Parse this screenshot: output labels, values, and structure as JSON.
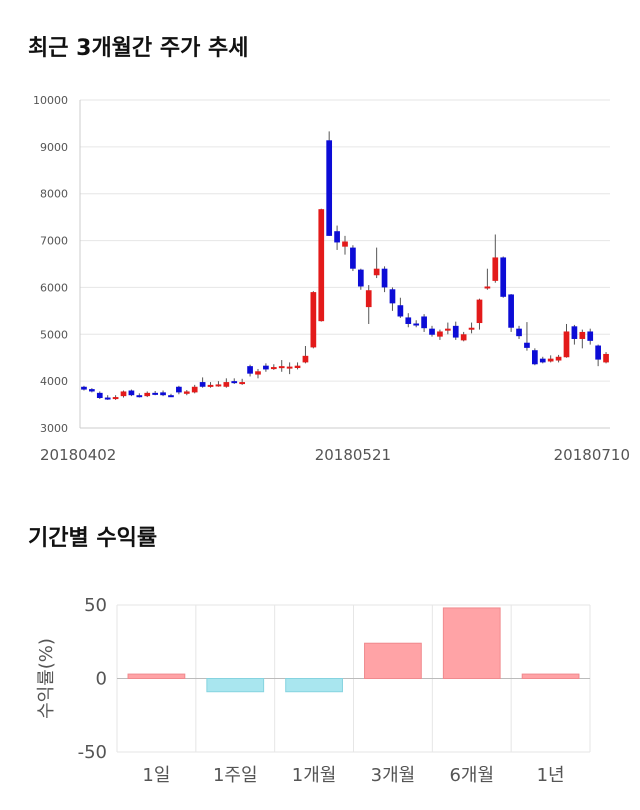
{
  "titles": {
    "price_chart": "최근 3개월간 주가 추세",
    "returns_chart": "기간별 수익률"
  },
  "colors": {
    "up": "#e31a1a",
    "down": "#0c0cd6",
    "wick": "#555555",
    "grid": "#e6e6e6",
    "positive_bar": "#ffa3a6",
    "negative_bar": "#a9e6ef"
  },
  "chart_data": [
    {
      "type": "candlestick",
      "title": "최근 3개월간 주가 추세",
      "ylim": [
        3000,
        10000
      ],
      "y_ticks": [
        "3000",
        "4000",
        "5000",
        "6000",
        "7000",
        "8000",
        "9000",
        "10000"
      ],
      "x_tick_labels": [
        {
          "label": "20180402",
          "index": 0
        },
        {
          "label": "20180521",
          "index": 34
        },
        {
          "label": "20180710",
          "index": 68
        }
      ],
      "grid": true,
      "candles": [
        [
          3880,
          3820,
          3900,
          3800
        ],
        [
          3830,
          3780,
          3850,
          3760
        ],
        [
          3750,
          3640,
          3780,
          3620
        ],
        [
          3650,
          3640,
          3700,
          3600
        ],
        [
          3640,
          3660,
          3700,
          3600
        ],
        [
          3680,
          3780,
          3800,
          3650
        ],
        [
          3800,
          3700,
          3820,
          3680
        ],
        [
          3700,
          3680,
          3740,
          3650
        ],
        [
          3680,
          3750,
          3780,
          3660
        ],
        [
          3750,
          3720,
          3790,
          3700
        ],
        [
          3760,
          3700,
          3800,
          3680
        ],
        [
          3700,
          3680,
          3730,
          3660
        ],
        [
          3880,
          3760,
          3900,
          3720
        ],
        [
          3730,
          3780,
          3810,
          3700
        ],
        [
          3760,
          3880,
          3920,
          3740
        ],
        [
          3980,
          3880,
          4080,
          3860
        ],
        [
          3900,
          3920,
          3980,
          3860
        ],
        [
          3920,
          3930,
          4000,
          3880
        ],
        [
          3880,
          3980,
          4060,
          3860
        ],
        [
          4000,
          3980,
          4060,
          3940
        ],
        [
          3960,
          3980,
          4050,
          3920
        ],
        [
          4320,
          4160,
          4350,
          4100
        ],
        [
          4140,
          4210,
          4260,
          4060
        ],
        [
          4330,
          4250,
          4380,
          4200
        ],
        [
          4280,
          4300,
          4360,
          4240
        ],
        [
          4300,
          4320,
          4450,
          4200
        ],
        [
          4310,
          4310,
          4400,
          4150
        ],
        [
          4280,
          4330,
          4400,
          4250
        ],
        [
          4400,
          4540,
          4750,
          4380
        ],
        [
          4720,
          5900,
          5920,
          4700
        ],
        [
          5280,
          7670,
          7680,
          5270
        ],
        [
          9140,
          7100,
          9330,
          7100
        ],
        [
          7200,
          6960,
          7320,
          6800
        ],
        [
          6870,
          6980,
          7100,
          6700
        ],
        [
          6850,
          6400,
          6900,
          6350
        ],
        [
          6380,
          6020,
          6400,
          5950
        ],
        [
          5580,
          5940,
          6050,
          5220
        ],
        [
          6260,
          6400,
          6850,
          6200
        ],
        [
          6400,
          6000,
          6450,
          5900
        ],
        [
          5960,
          5660,
          6000,
          5500
        ],
        [
          5620,
          5380,
          5780,
          5350
        ],
        [
          5360,
          5220,
          5450,
          5150
        ],
        [
          5230,
          5210,
          5300,
          5150
        ],
        [
          5380,
          5130,
          5430,
          5050
        ],
        [
          5120,
          4990,
          5180,
          4950
        ],
        [
          4950,
          5060,
          5100,
          4880
        ],
        [
          5100,
          5120,
          5250,
          5000
        ],
        [
          5180,
          4930,
          5270,
          4880
        ],
        [
          4870,
          5000,
          5050,
          4850
        ],
        [
          5100,
          5140,
          5250,
          5020
        ],
        [
          5240,
          5740,
          5760,
          5100
        ],
        [
          6010,
          6020,
          6400,
          5950
        ],
        [
          6140,
          6640,
          7130,
          6100
        ],
        [
          6640,
          5800,
          6660,
          5780
        ],
        [
          5850,
          5140,
          5860,
          5050
        ],
        [
          5120,
          4960,
          5180,
          4900
        ],
        [
          4820,
          4710,
          5260,
          4650
        ],
        [
          4660,
          4360,
          4700,
          4340
        ],
        [
          4480,
          4400,
          4520,
          4380
        ],
        [
          4420,
          4480,
          4550,
          4400
        ],
        [
          4440,
          4520,
          4560,
          4400
        ],
        [
          4510,
          5060,
          5220,
          4500
        ],
        [
          5170,
          4900,
          5200,
          4780
        ],
        [
          4900,
          5050,
          5100,
          4700
        ],
        [
          5060,
          4860,
          5120,
          4780
        ],
        [
          4760,
          4460,
          4780,
          4320
        ],
        [
          4400,
          4580,
          4620,
          4380
        ]
      ]
    },
    {
      "type": "bar",
      "title": "기간별 수익률",
      "categories": [
        "1일",
        "1주일",
        "1개월",
        "3개월",
        "6개월",
        "1년"
      ],
      "values": [
        3,
        -9,
        -9,
        24,
        48,
        3
      ],
      "ylabel": "수익률(%)",
      "ylim": [
        -50,
        50
      ],
      "y_ticks": [
        "50",
        "0",
        "-50"
      ],
      "grid": true
    }
  ]
}
